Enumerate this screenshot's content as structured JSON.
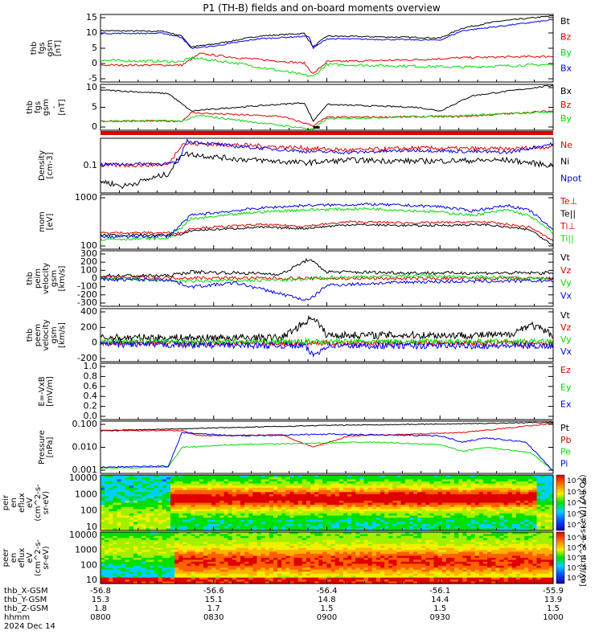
{
  "title": "P1 (TH-B) fields and on-board moments overview",
  "colors": {
    "black": "#000000",
    "red": "#e00000",
    "green": "#00dd00",
    "blue": "#0000ee"
  },
  "chart_data": {
    "type": "line",
    "x_ticks": [
      "0800",
      "0830",
      "0900",
      "0930",
      "1000"
    ],
    "panels": [
      {
        "id": "fgs",
        "ylabel": [
          "thb",
          "fgs",
          "gsm",
          "[nT]"
        ],
        "yticks": [
          "15",
          "10",
          "5",
          "0",
          "-5"
        ],
        "ylim": [
          -6,
          17
        ],
        "legend": [
          {
            "name": "Bt",
            "color": "#000000"
          },
          {
            "name": "Bz",
            "color": "#e00000"
          },
          {
            "name": "By",
            "color": "#00dd00"
          },
          {
            "name": "Bx",
            "color": "#0000ee"
          }
        ]
      },
      {
        "id": "fgs_dsl",
        "ylabel": [
          "thb",
          "fgs",
          "gsm",
          "-",
          "[nT]"
        ],
        "yticks": [
          "10",
          "5",
          "0"
        ],
        "ylim": [
          -3,
          13
        ],
        "legend": [
          {
            "name": "Bx",
            "color": "#000000"
          },
          {
            "name": "Bz",
            "color": "#e00000"
          },
          {
            "name": "By",
            "color": "#00dd00"
          }
        ]
      },
      {
        "id": "density",
        "ylabel": [
          "Density",
          "[cm-3]"
        ],
        "yticks": [
          "0.1"
        ],
        "ylim": [
          0.01,
          1
        ],
        "legend": [
          {
            "name": "Ne",
            "color": "#e00000"
          },
          {
            "name": "Ni",
            "color": "#000000"
          },
          {
            "name": "Npot",
            "color": "#0000ee"
          }
        ]
      },
      {
        "id": "temp",
        "ylabel": [
          "mom",
          "[eV]"
        ],
        "yticks": [
          "1000",
          "100"
        ],
        "ylim": [
          30,
          3000
        ],
        "legend": [
          {
            "name": "Te⊥",
            "color": "#e00000"
          },
          {
            "name": "Te||",
            "color": "#000000"
          },
          {
            "name": "Ti⊥",
            "color": "#e00000"
          },
          {
            "name": "Ti||",
            "color": "#00dd00"
          }
        ]
      },
      {
        "id": "vi",
        "ylabel": [
          "thb",
          "peim",
          "velocity",
          "gsm",
          "[km/s]"
        ],
        "yticks": [
          "300",
          "200",
          "100",
          "0",
          "-100",
          "-200",
          "-300"
        ],
        "ylim": [
          -330,
          330
        ],
        "legend": [
          {
            "name": "Vt",
            "color": "#000000"
          },
          {
            "name": "Vz",
            "color": "#e00000"
          },
          {
            "name": "Vy",
            "color": "#00dd00"
          },
          {
            "name": "Vx",
            "color": "#0000ee"
          }
        ]
      },
      {
        "id": "ve",
        "ylabel": [
          "thb",
          "peem",
          "velocity",
          "gsm",
          "[km/s]"
        ],
        "yticks": [
          "400",
          "200",
          "0",
          "-200"
        ],
        "ylim": [
          -260,
          460
        ],
        "legend": [
          {
            "name": "Vt",
            "color": "#000000"
          },
          {
            "name": "Vz",
            "color": "#e00000"
          },
          {
            "name": "Vy",
            "color": "#00dd00"
          },
          {
            "name": "Vx",
            "color": "#0000ee"
          }
        ]
      },
      {
        "id": "efield",
        "ylabel": [
          "E=-VxB",
          "[mV/m]"
        ],
        "yticks": [
          "1.0",
          "0.8",
          "0.6",
          "0.4",
          "0.2",
          "0.0"
        ],
        "ylim": [
          0,
          1
        ],
        "legend": [
          {
            "name": "Ez",
            "color": "#e00000"
          },
          {
            "name": "Ey",
            "color": "#00dd00"
          },
          {
            "name": "Ex",
            "color": "#0000ee"
          }
        ]
      },
      {
        "id": "pressure",
        "ylabel": [
          "Pressure",
          "[nPa]"
        ],
        "yticks": [
          "0.100",
          "0.010",
          "0.001"
        ],
        "ylim": [
          0.0008,
          0.12
        ],
        "legend": [
          {
            "name": "Pt",
            "color": "#000000"
          },
          {
            "name": "Pb",
            "color": "#e00000"
          },
          {
            "name": "Pe",
            "color": "#00dd00"
          },
          {
            "name": "Pi",
            "color": "#0000ee"
          }
        ]
      },
      {
        "id": "peir",
        "ylabel": [
          "thb",
          "peir",
          "en",
          "eflux",
          "eV",
          "(cm^2-s-",
          "sr-eV)"
        ],
        "yticks": [
          "10000",
          "1000",
          "100",
          "10"
        ],
        "colorbar_ticks": [
          "10^8",
          "10^6",
          "10^4",
          "10^3",
          "10^2"
        ]
      },
      {
        "id": "peer",
        "ylabel": [
          "thb",
          "peer",
          "en",
          "eflux",
          "eV",
          "(cm^2-s-",
          "sr-eV)"
        ],
        "yticks": [
          "10000",
          "1000",
          "100",
          "10"
        ],
        "colorbar_ticks": [
          "10^8",
          "10^6",
          "10^4",
          "10^3",
          "10^2"
        ]
      }
    ],
    "colorbar_label": "[eV/(cm^2-s-sr-eV)] (All Qs)",
    "x_axis_rows": [
      {
        "label": "thb_X-GSM",
        "values": [
          "-56.8",
          "-56.6",
          "-56.4",
          "-56.1",
          "-55.9"
        ]
      },
      {
        "label": "thb_Y-GSM",
        "values": [
          "15.3",
          "15.1",
          "14.8",
          "14.4",
          "13.9"
        ]
      },
      {
        "label": "thb_Z-GSM",
        "values": [
          "1.8",
          "1.7",
          "1.5",
          "1.5",
          "1.5"
        ]
      },
      {
        "label": "hhmm",
        "values": [
          "0800",
          "0830",
          "0900",
          "0930",
          "1000"
        ]
      }
    ],
    "date_label": "2024 Dec 14"
  }
}
